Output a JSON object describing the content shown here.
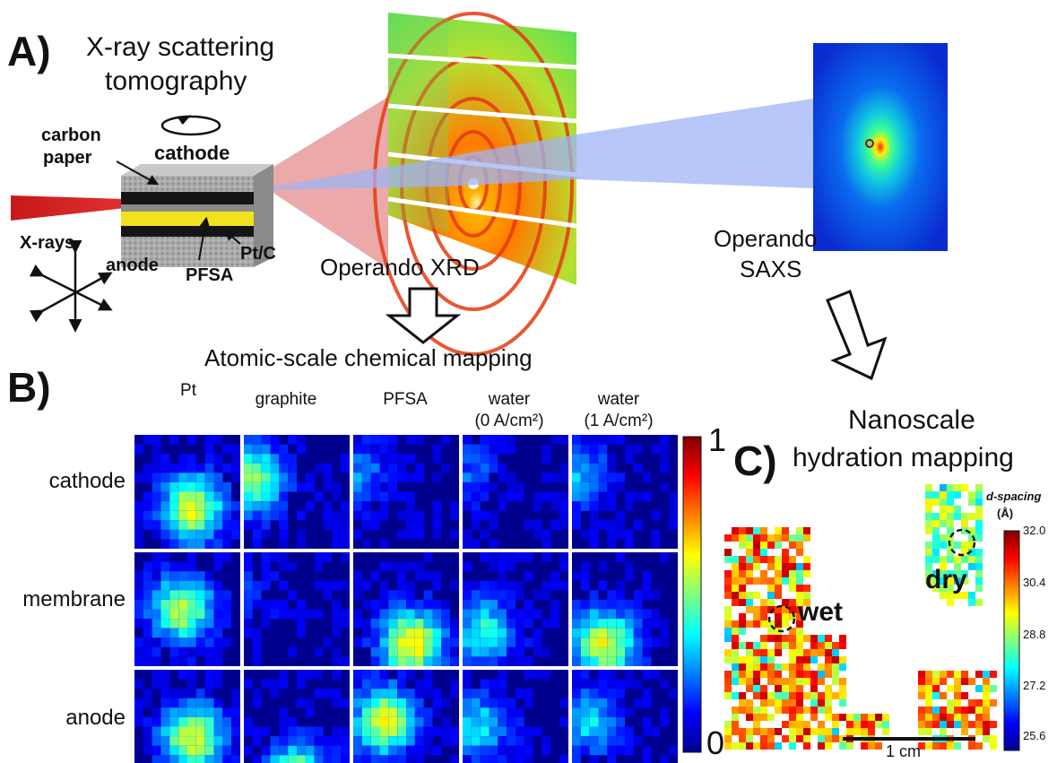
{
  "panel_a": {
    "letter": "A)",
    "title_line1": "X-ray scattering",
    "title_line2": "tomography",
    "labels": {
      "carbon_line1": "carbon",
      "carbon_line2": "paper",
      "cathode": "cathode",
      "xrays": "X-rays",
      "anode": "anode",
      "pfsa": "PFSA",
      "ptc": "Pt/C",
      "xrd": "Operando XRD",
      "saxs_line1": "Operando",
      "saxs_line2": "SAXS"
    }
  },
  "panel_b": {
    "letter": "B)",
    "title": "Atomic-scale chemical mapping",
    "columns": [
      {
        "line1": "",
        "line2": "Pt"
      },
      {
        "line1": "",
        "line2": "graphite"
      },
      {
        "line1": "",
        "line2": "PFSA"
      },
      {
        "line1": "water",
        "line2": "(0 A/cm²)"
      },
      {
        "line1": "water",
        "line2": "(1 A/cm²)"
      }
    ],
    "rows": [
      "cathode",
      "membrane",
      "anode"
    ],
    "colorbar": {
      "max": "1",
      "min": "0"
    }
  },
  "panel_c": {
    "letter": "C)",
    "title_line1": "Nanoscale",
    "title_line2": "hydration mapping",
    "colorbar_title_line1": "d-spacing",
    "colorbar_title_line2": "(Å)",
    "colorbar_ticks": [
      "32.0",
      "30.4",
      "28.8",
      "27.2",
      "25.6"
    ],
    "dry_label": "dry",
    "wet_label": "wet",
    "scalebar_label": "1 cm"
  },
  "colors": {
    "jet_low": "#00008f",
    "jet_high": "#800000",
    "beam_red": "#d42020",
    "cone_red": "#e89a9a",
    "cone_blue": "#9db4f5",
    "pfsa_yellow": "#f2e21e"
  }
}
